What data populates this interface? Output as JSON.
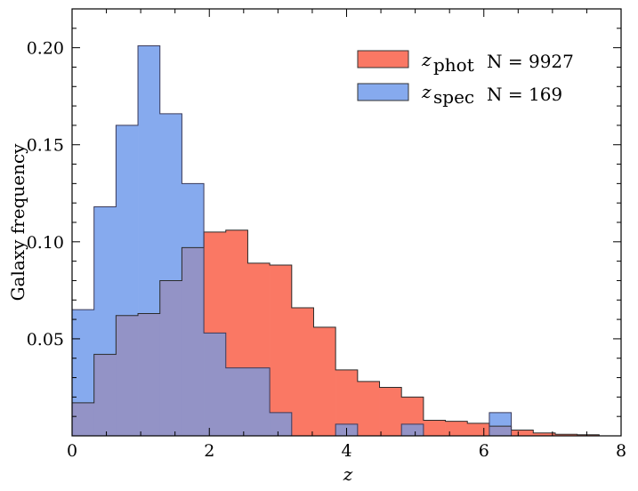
{
  "chart_data": {
    "type": "histogram",
    "title": "",
    "xlabel": "z",
    "ylabel": "Galaxy frequency",
    "xlim": [
      0,
      8
    ],
    "ylim": [
      0,
      0.22
    ],
    "grid": false,
    "legend_position": "top-right",
    "x_ticks": [
      {
        "value": 0,
        "label": "0"
      },
      {
        "value": 2,
        "label": "2"
      },
      {
        "value": 4,
        "label": "4"
      },
      {
        "value": 6,
        "label": "6"
      },
      {
        "value": 8,
        "label": "8"
      }
    ],
    "y_ticks": [
      {
        "value": 0.05,
        "label": "0.05"
      },
      {
        "value": 0.1,
        "label": "0.10"
      },
      {
        "value": 0.15,
        "label": "0.15"
      },
      {
        "value": 0.2,
        "label": "0.20"
      }
    ],
    "bin_edges": [
      0.0,
      0.32,
      0.64,
      0.96,
      1.28,
      1.6,
      1.92,
      2.24,
      2.56,
      2.88,
      3.2,
      3.52,
      3.84,
      4.16,
      4.48,
      4.8,
      5.12,
      5.44,
      5.76,
      6.08,
      6.4,
      6.72,
      7.04,
      7.36,
      7.68
    ],
    "series": [
      {
        "name": "phot",
        "legend_symbol": "z",
        "legend_subscript": "phot",
        "legend_count": "N = 9927",
        "color": "#fa7864",
        "values": [
          0.017,
          0.042,
          0.062,
          0.063,
          0.08,
          0.097,
          0.105,
          0.106,
          0.089,
          0.088,
          0.066,
          0.056,
          0.034,
          0.028,
          0.025,
          0.02,
          0.008,
          0.0075,
          0.0065,
          0.005,
          0.003,
          0.0015,
          0.0008,
          0.0006
        ]
      },
      {
        "name": "spec",
        "legend_symbol": "z",
        "legend_subscript": "spec",
        "legend_count": "N = 169",
        "color": "#86aaee",
        "values": [
          0.065,
          0.118,
          0.16,
          0.201,
          0.166,
          0.13,
          0.053,
          0.035,
          0.035,
          0.012,
          0.0,
          0.0,
          0.006,
          0.0,
          0.0,
          0.006,
          0.0,
          0.0,
          0.0,
          0.012,
          0.0,
          0.0,
          0.0,
          0.0
        ]
      }
    ],
    "overlap_color": "#9393c6"
  }
}
